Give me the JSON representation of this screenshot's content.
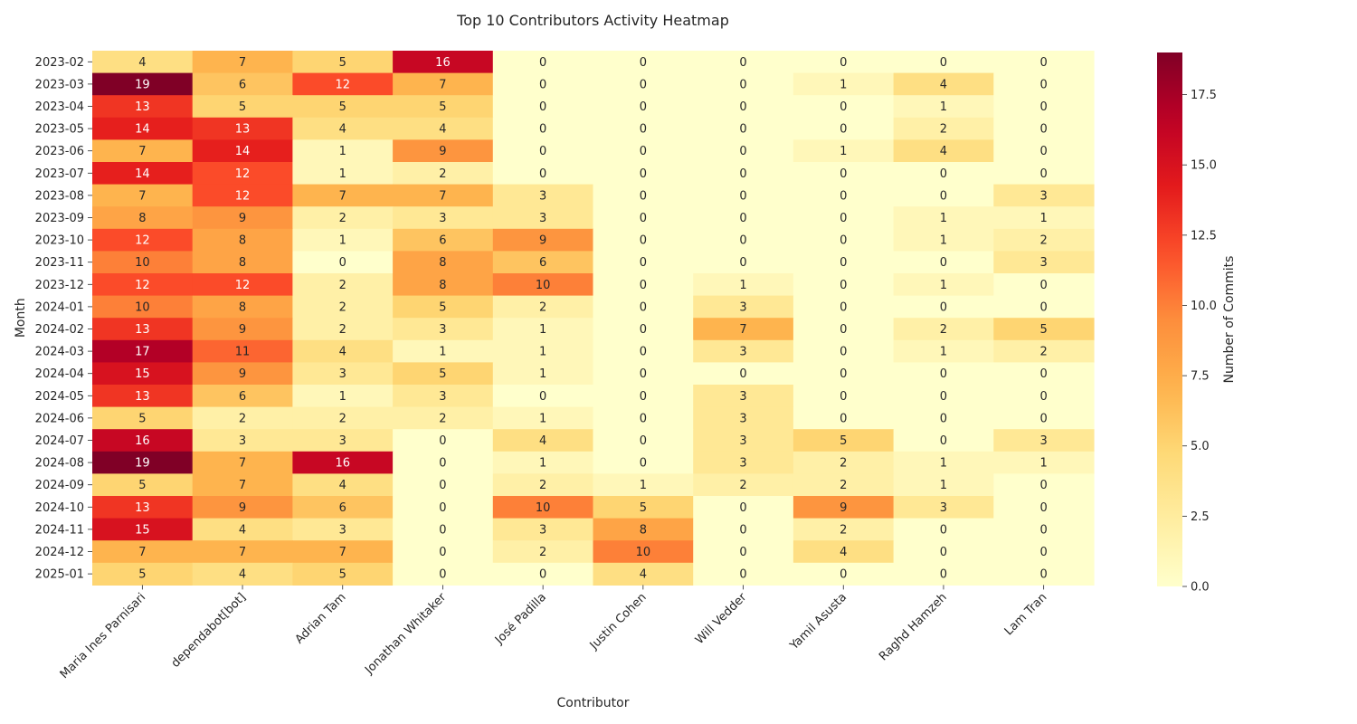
{
  "chart_data": {
    "type": "heatmap",
    "title": "Top 10 Contributors Activity Heatmap",
    "xlabel": "Contributor",
    "ylabel": "Month",
    "colorbar_label": "Number of Commits",
    "colormap": "YlOrRd",
    "value_range": [
      0,
      19
    ],
    "colorbar_ticks": [
      "0.0",
      "2.5",
      "5.0",
      "7.5",
      "10.0",
      "12.5",
      "15.0",
      "17.5"
    ],
    "colorbar_tick_values": [
      0,
      2.5,
      5,
      7.5,
      10,
      12.5,
      15,
      17.5
    ],
    "x_categories": [
      "Maria Ines Parnisari",
      "dependabot[bot]",
      "Adrian Tam",
      "Jonathan Whitaker",
      "José Padilla",
      "Justin Cohen",
      "Will Vedder",
      "Yamil Asusta",
      "Raghd Hamzeh",
      "Lam Tran"
    ],
    "y_categories": [
      "2023-02",
      "2023-03",
      "2023-04",
      "2023-05",
      "2023-06",
      "2023-07",
      "2023-08",
      "2023-09",
      "2023-10",
      "2023-11",
      "2023-12",
      "2024-01",
      "2024-02",
      "2024-03",
      "2024-04",
      "2024-05",
      "2024-06",
      "2024-07",
      "2024-08",
      "2024-09",
      "2024-10",
      "2024-11",
      "2024-12",
      "2025-01"
    ],
    "values": [
      [
        4,
        7,
        5,
        16,
        0,
        0,
        0,
        0,
        0,
        0
      ],
      [
        19,
        6,
        12,
        7,
        0,
        0,
        0,
        1,
        4,
        0
      ],
      [
        13,
        5,
        5,
        5,
        0,
        0,
        0,
        0,
        1,
        0
      ],
      [
        14,
        13,
        4,
        4,
        0,
        0,
        0,
        0,
        2,
        0
      ],
      [
        7,
        14,
        1,
        9,
        0,
        0,
        0,
        1,
        4,
        0
      ],
      [
        14,
        12,
        1,
        2,
        0,
        0,
        0,
        0,
        0,
        0
      ],
      [
        7,
        12,
        7,
        7,
        3,
        0,
        0,
        0,
        0,
        3
      ],
      [
        8,
        9,
        2,
        3,
        3,
        0,
        0,
        0,
        1,
        1
      ],
      [
        12,
        8,
        1,
        6,
        9,
        0,
        0,
        0,
        1,
        2
      ],
      [
        10,
        8,
        0,
        8,
        6,
        0,
        0,
        0,
        0,
        3
      ],
      [
        12,
        12,
        2,
        8,
        10,
        0,
        1,
        0,
        1,
        0
      ],
      [
        10,
        8,
        2,
        5,
        2,
        0,
        3,
        0,
        0,
        0
      ],
      [
        13,
        9,
        2,
        3,
        1,
        0,
        7,
        0,
        2,
        5
      ],
      [
        17,
        11,
        4,
        1,
        1,
        0,
        3,
        0,
        1,
        2
      ],
      [
        15,
        9,
        3,
        5,
        1,
        0,
        0,
        0,
        0,
        0
      ],
      [
        13,
        6,
        1,
        3,
        0,
        0,
        3,
        0,
        0,
        0
      ],
      [
        5,
        2,
        2,
        2,
        1,
        0,
        3,
        0,
        0,
        0
      ],
      [
        16,
        3,
        3,
        0,
        4,
        0,
        3,
        5,
        0,
        3
      ],
      [
        19,
        7,
        16,
        0,
        1,
        0,
        3,
        2,
        1,
        1
      ],
      [
        5,
        7,
        4,
        0,
        2,
        1,
        2,
        2,
        1,
        0
      ],
      [
        13,
        9,
        6,
        0,
        10,
        5,
        0,
        9,
        3,
        0
      ],
      [
        15,
        4,
        3,
        0,
        3,
        8,
        0,
        2,
        0,
        0
      ],
      [
        7,
        7,
        7,
        0,
        2,
        10,
        0,
        4,
        0,
        0
      ],
      [
        5,
        4,
        5,
        0,
        0,
        4,
        0,
        0,
        0,
        0
      ]
    ]
  }
}
